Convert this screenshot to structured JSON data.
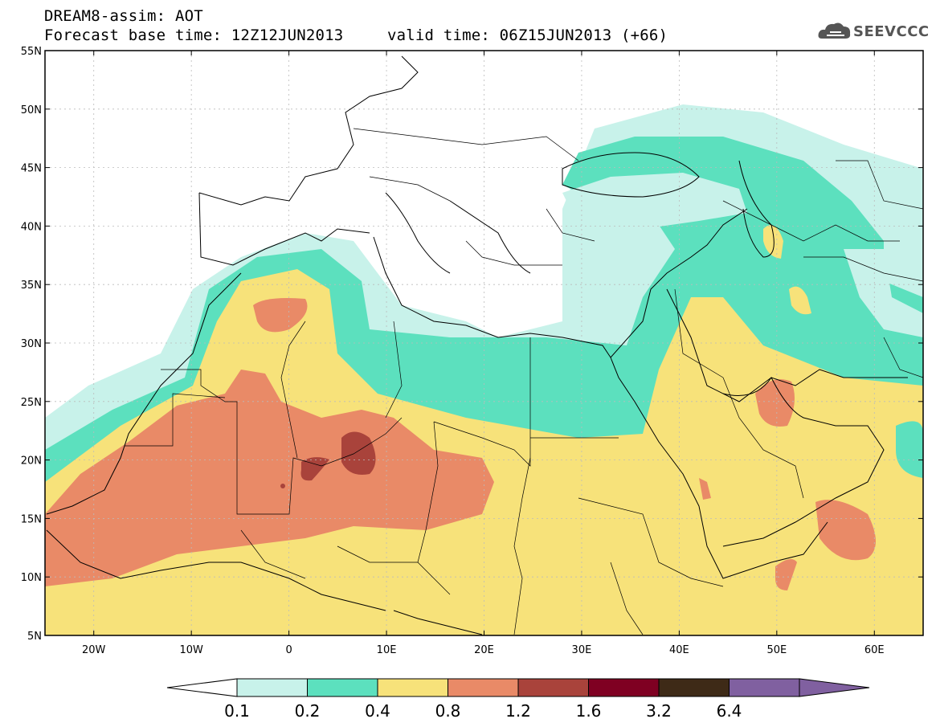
{
  "header": {
    "line1": "DREAM8-assim: AOT",
    "line2": "Forecast base time: 12Z12JUN2013",
    "line2b": "valid time: 06Z15JUN2013 (+66)"
  },
  "logo": {
    "text": "SEEVCCC",
    "icon": "cloud-icon"
  },
  "map": {
    "lon_range": [
      -25,
      65
    ],
    "lat_range": [
      5,
      55
    ],
    "lon_ticks": [
      {
        "value": -20,
        "label": "20W"
      },
      {
        "value": -10,
        "label": "10W"
      },
      {
        "value": 0,
        "label": "0"
      },
      {
        "value": 10,
        "label": "10E"
      },
      {
        "value": 20,
        "label": "20E"
      },
      {
        "value": 30,
        "label": "30E"
      },
      {
        "value": 40,
        "label": "40E"
      },
      {
        "value": 50,
        "label": "50E"
      },
      {
        "value": 60,
        "label": "60E"
      }
    ],
    "lat_ticks": [
      {
        "value": 55,
        "label": "55N"
      },
      {
        "value": 50,
        "label": "50N"
      },
      {
        "value": 45,
        "label": "45N"
      },
      {
        "value": 40,
        "label": "40N"
      },
      {
        "value": 35,
        "label": "35N"
      },
      {
        "value": 30,
        "label": "30N"
      },
      {
        "value": 25,
        "label": "25N"
      },
      {
        "value": 20,
        "label": "20N"
      },
      {
        "value": 15,
        "label": "15N"
      },
      {
        "value": 10,
        "label": "10N"
      },
      {
        "value": 5,
        "label": "5N"
      }
    ],
    "grid": true
  },
  "colorbar": {
    "levels": [
      "0.1",
      "0.2",
      "0.4",
      "0.8",
      "1.2",
      "1.6",
      "3.2",
      "6.4"
    ],
    "colors": [
      "#ffffff",
      "#c8f2ea",
      "#5ce0be",
      "#f7e27a",
      "#e98a67",
      "#a9433b",
      "#7f0022",
      "#3e2a17",
      "#8060a0"
    ]
  }
}
